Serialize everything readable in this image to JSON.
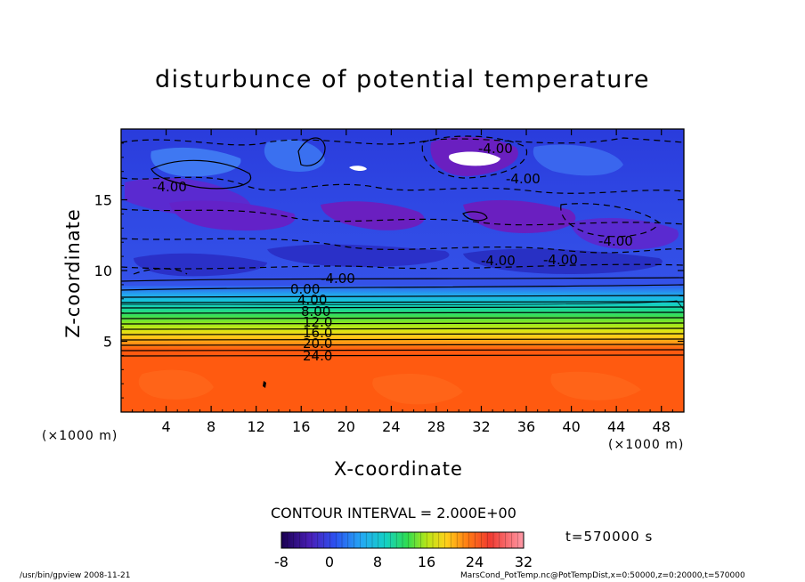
{
  "chart_data": {
    "type": "heatmap",
    "title": "disturbunce of potential temperature",
    "xlabel": "X-coordinate",
    "ylabel": "Z-coordinate",
    "x_unit_left": "(×1000 m)",
    "x_unit_right": "(×1000 m)",
    "xlim": [
      0,
      50
    ],
    "ylim": [
      0,
      20
    ],
    "x_ticks": [
      "4",
      "8",
      "12",
      "16",
      "20",
      "24",
      "28",
      "32",
      "36",
      "40",
      "44",
      "48"
    ],
    "y_ticks": [
      "5",
      "10",
      "15"
    ],
    "contour_labels": [
      "-4.00",
      "-4.00",
      "-4.00",
      "-4.00",
      "-4.00",
      "-4.00",
      "-4.00",
      "0.00",
      "4.00",
      "8.00",
      "12.0",
      "16.0",
      "20.0",
      "24.0"
    ],
    "contour_interval": "CONTOUR INTERVAL = 2.000E+00",
    "colorbar": {
      "min": -8,
      "max": 32,
      "tick_labels": [
        "-8",
        "0",
        "8",
        "16",
        "24",
        "32"
      ]
    },
    "time_label": "t=570000 s",
    "footer_left": "/usr/bin/gpview   2008-11-21",
    "footer_right": "MarsCond_PotTemp.nc@PotTempDist,x=0:50000,z=0:20000,t=570000",
    "colors": {
      "upper": "#2a40e0",
      "purple": "#6a1fc0",
      "deep": "#3a22b0",
      "lower": "#ff5a10"
    }
  }
}
